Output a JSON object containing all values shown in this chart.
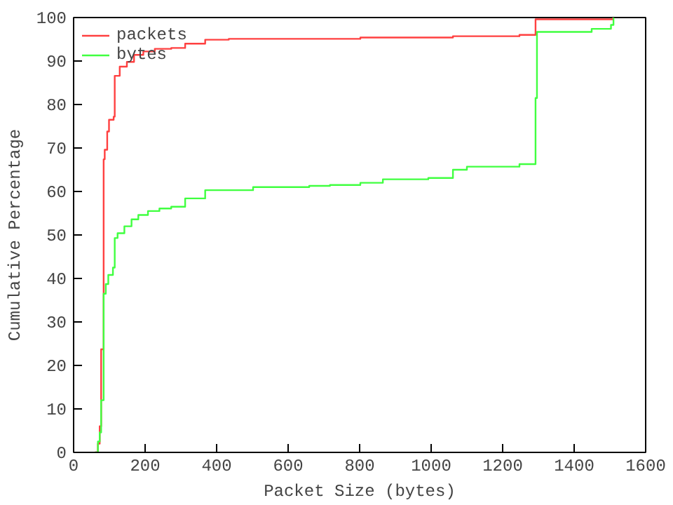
{
  "chart_data": {
    "type": "step",
    "xlabel": "Packet Size (bytes)",
    "ylabel": "Cumulative Percentage",
    "xlim": [
      0,
      1600
    ],
    "ylim": [
      0,
      100
    ],
    "xticks": [
      0,
      200,
      400,
      600,
      800,
      1000,
      1200,
      1400,
      1600
    ],
    "yticks": [
      0,
      10,
      20,
      30,
      40,
      50,
      60,
      70,
      80,
      90,
      100
    ],
    "grid": false,
    "legend": "top left",
    "line_style": "solid",
    "marker": "none",
    "series": [
      {
        "name": "packets",
        "color": "#ff4040",
        "x": [
          60,
          68,
          73,
          77,
          84,
          87,
          94,
          99,
          112,
          115,
          129,
          149,
          169,
          195,
          227,
          273,
          312,
          368,
          434,
          802,
          1061,
          1247,
          1292,
          1508
        ],
        "values": [
          0,
          2,
          6,
          23.7,
          67.4,
          69.6,
          73.8,
          76.5,
          77.2,
          86.6,
          88.7,
          89.8,
          91.4,
          92.2,
          92.8,
          93,
          94,
          94.9,
          95.1,
          95.4,
          95.7,
          96,
          99.6,
          100
        ]
      },
      {
        "name": "bytes",
        "color": "#40ff40",
        "x": [
          60,
          68,
          73,
          77,
          84,
          90,
          97,
          110,
          115,
          123,
          142,
          162,
          181,
          208,
          240,
          273,
          312,
          368,
          502,
          659,
          717,
          802,
          865,
          992,
          1061,
          1100,
          1247,
          1292,
          1296,
          1449,
          1503,
          1510
        ],
        "values": [
          0,
          2.5,
          4.6,
          12,
          36.5,
          38.7,
          40.8,
          42.5,
          49.3,
          50.4,
          52,
          53.6,
          54.6,
          55.5,
          56.1,
          56.5,
          58.4,
          60.3,
          61,
          61.3,
          61.5,
          62,
          62.8,
          63.1,
          65,
          65.7,
          66.3,
          81.5,
          96.7,
          97.4,
          98.3,
          100
        ]
      }
    ]
  }
}
